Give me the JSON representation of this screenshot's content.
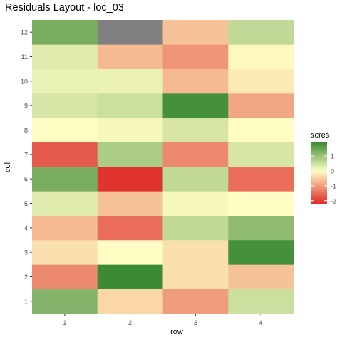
{
  "chart_data": {
    "type": "heatmap",
    "title": "Residuals Layout - loc_03",
    "xlabel": "row",
    "ylabel": "col",
    "x_categories": [
      "1",
      "2",
      "3",
      "4"
    ],
    "y_categories": [
      "1",
      "2",
      "3",
      "4",
      "5",
      "6",
      "7",
      "8",
      "9",
      "10",
      "11",
      "12"
    ],
    "value_name": "scres",
    "values": [
      [
        1.2,
        -0.4,
        -1.0,
        0.5
      ],
      [
        -1.2,
        1.9,
        -0.3,
        -0.6
      ],
      [
        -0.3,
        0.0,
        -0.3,
        1.8
      ],
      [
        -0.7,
        -1.5,
        0.6,
        1.1
      ],
      [
        0.3,
        -0.6,
        0.1,
        0.0
      ],
      [
        1.3,
        -2.1,
        0.6,
        -1.5
      ],
      [
        -1.7,
        0.8,
        -1.2,
        0.4
      ],
      [
        0.0,
        0.1,
        0.4,
        0.0
      ],
      [
        0.4,
        0.5,
        1.8,
        -0.9
      ],
      [
        0.2,
        0.2,
        -0.7,
        -0.2
      ],
      [
        0.3,
        -0.7,
        -1.1,
        -0.05
      ],
      [
        1.3,
        null,
        -0.6,
        0.6
      ]
    ],
    "na_color": "#808080",
    "color_scale": {
      "low_color": "#de2a27",
      "mid_color": "#fffdc4",
      "high_color": "#3b8a34",
      "limits": [
        -2.2,
        1.9
      ],
      "breaks": [
        -2,
        -1,
        0,
        1
      ],
      "break_labels": [
        "-2",
        "-1",
        "0",
        "1"
      ]
    },
    "legend": {
      "position": "right",
      "title": "scres"
    },
    "grid": false
  }
}
